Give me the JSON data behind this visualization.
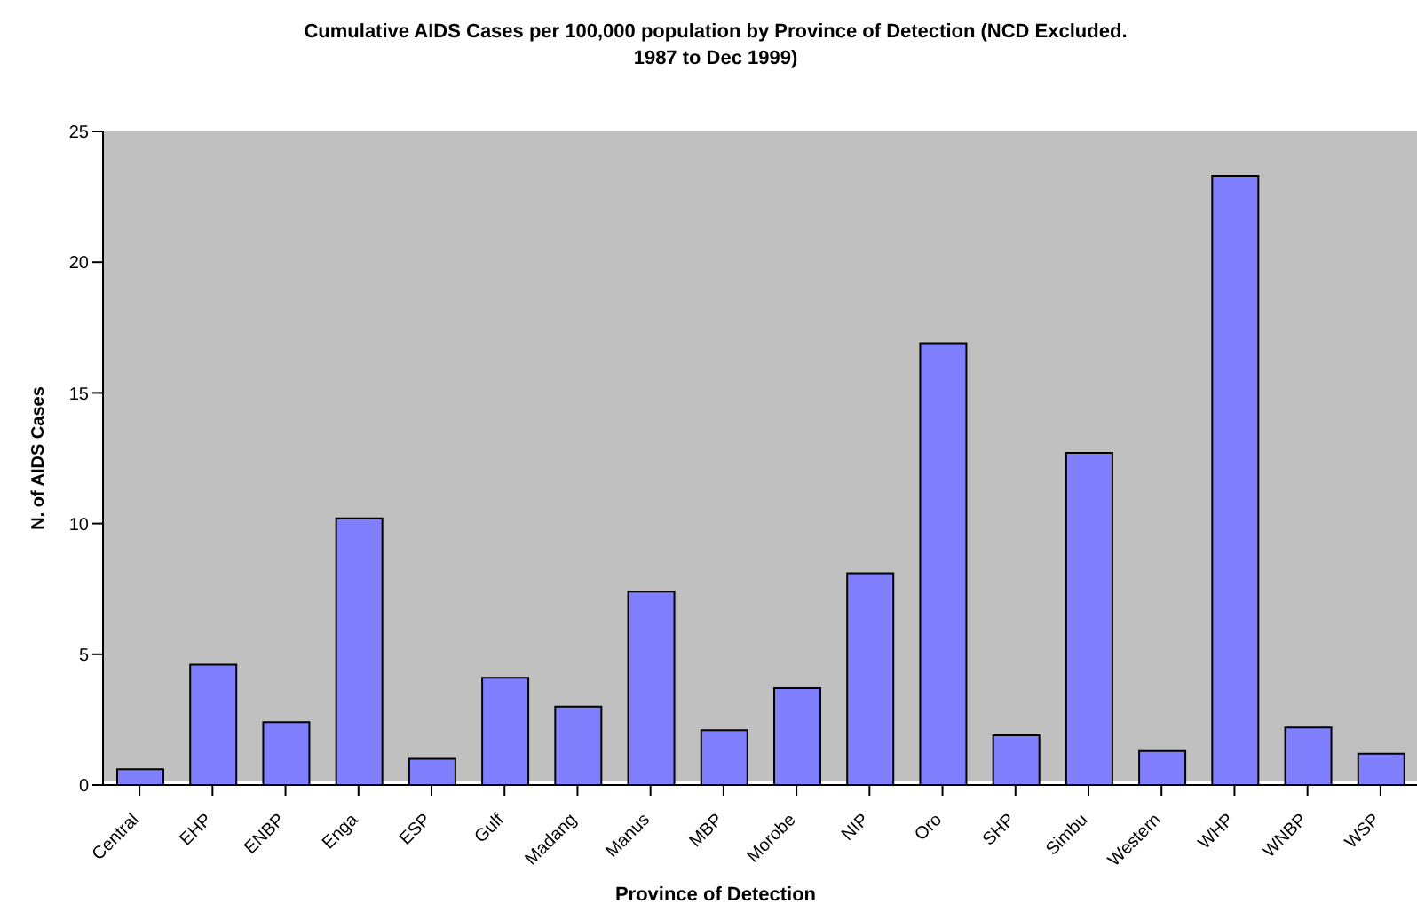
{
  "chart_data": {
    "type": "bar",
    "title": "Cumulative AIDS Cases per 100,000 population by Province of Detection (NCD Excluded.\n1987 to Dec 1999)",
    "xlabel": "Province of Detection",
    "ylabel": "N. of AIDS Cases",
    "categories": [
      "Central",
      "EHP",
      "ENBP",
      "Enga",
      "ESP",
      "Gulf",
      "Madang",
      "Manus",
      "MBP",
      "Morobe",
      "NIP",
      "Oro",
      "SHP",
      "Simbu",
      "Western",
      "WHP",
      "WNBP",
      "WSP"
    ],
    "values": [
      0.6,
      4.6,
      2.4,
      10.2,
      1.0,
      4.1,
      3.0,
      7.4,
      2.1,
      3.7,
      8.1,
      16.9,
      1.9,
      12.7,
      1.3,
      23.3,
      2.2,
      1.2
    ],
    "color": "#8080ff",
    "ylim": [
      0,
      25
    ],
    "yticks": [
      0,
      5,
      10,
      15,
      20,
      25
    ],
    "grid": false
  }
}
